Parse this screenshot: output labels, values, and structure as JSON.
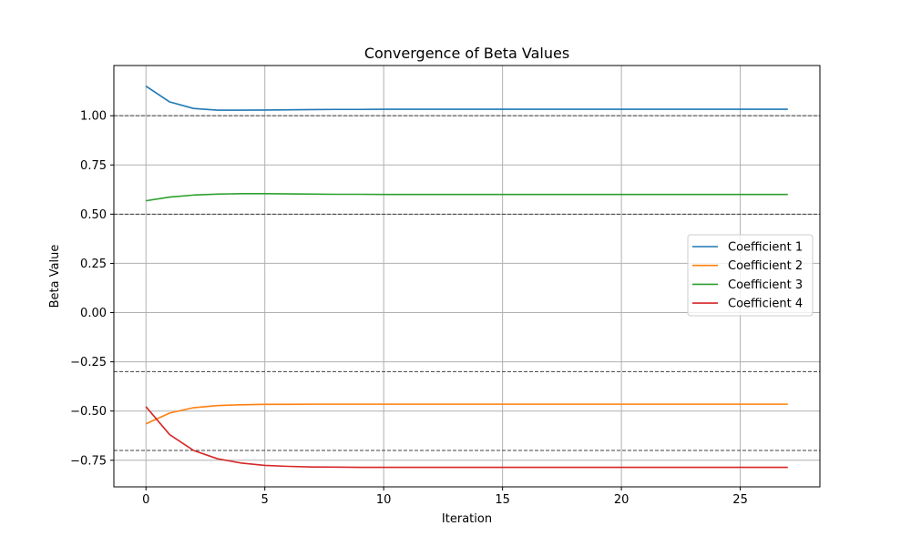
{
  "chart_data": {
    "type": "line",
    "title": "Convergence of Beta Values",
    "xlabel": "Iteration",
    "ylabel": "Beta Value",
    "xlim": [
      -1.35,
      28.35
    ],
    "ylim": [
      -0.885,
      1.255
    ],
    "xticks": [
      0,
      5,
      10,
      15,
      20,
      25
    ],
    "xtick_labels": [
      "0",
      "5",
      "10",
      "15",
      "20",
      "25"
    ],
    "yticks": [
      -0.75,
      -0.5,
      -0.25,
      0.0,
      0.25,
      0.5,
      0.75,
      1.0
    ],
    "ytick_labels": [
      "−0.75",
      "−0.50",
      "−0.25",
      "0.00",
      "0.25",
      "0.50",
      "0.75",
      "1.00"
    ],
    "grid": true,
    "legend_position": "center-right",
    "x": [
      0,
      1,
      2,
      3,
      4,
      5,
      6,
      7,
      8,
      9,
      10,
      11,
      12,
      13,
      14,
      15,
      16,
      17,
      18,
      19,
      20,
      21,
      22,
      23,
      24,
      25,
      26,
      27
    ],
    "series": [
      {
        "name": "Coefficient 1",
        "color": "#1f77b4",
        "values": [
          1.15,
          1.07,
          1.037,
          1.028,
          1.028,
          1.029,
          1.03,
          1.031,
          1.032,
          1.032,
          1.033,
          1.033,
          1.033,
          1.033,
          1.033,
          1.033,
          1.033,
          1.033,
          1.033,
          1.033,
          1.033,
          1.033,
          1.033,
          1.033,
          1.033,
          1.033,
          1.033,
          1.033
        ]
      },
      {
        "name": "Coefficient 2",
        "color": "#ff7f0e",
        "values": [
          -0.565,
          -0.51,
          -0.483,
          -0.472,
          -0.468,
          -0.466,
          -0.466,
          -0.465,
          -0.465,
          -0.465,
          -0.465,
          -0.465,
          -0.465,
          -0.465,
          -0.465,
          -0.465,
          -0.465,
          -0.465,
          -0.465,
          -0.465,
          -0.465,
          -0.465,
          -0.465,
          -0.465,
          -0.465,
          -0.465,
          -0.465,
          -0.465
        ]
      },
      {
        "name": "Coefficient 3",
        "color": "#2ca02c",
        "values": [
          0.568,
          0.587,
          0.597,
          0.602,
          0.604,
          0.604,
          0.603,
          0.602,
          0.601,
          0.601,
          0.6,
          0.6,
          0.6,
          0.6,
          0.6,
          0.6,
          0.6,
          0.6,
          0.6,
          0.6,
          0.6,
          0.6,
          0.6,
          0.6,
          0.6,
          0.6,
          0.6,
          0.6
        ]
      },
      {
        "name": "Coefficient 4",
        "color": "#d62728",
        "values": [
          -0.478,
          -0.62,
          -0.7,
          -0.742,
          -0.764,
          -0.776,
          -0.781,
          -0.784,
          -0.785,
          -0.786,
          -0.786,
          -0.786,
          -0.786,
          -0.786,
          -0.786,
          -0.786,
          -0.786,
          -0.786,
          -0.786,
          -0.786,
          -0.786,
          -0.786,
          -0.786,
          -0.786,
          -0.786,
          -0.786,
          -0.786,
          -0.786
        ]
      }
    ],
    "reference_lines": [
      1.0,
      0.5,
      -0.3,
      -0.7
    ],
    "reference_line_color": "#404040"
  }
}
